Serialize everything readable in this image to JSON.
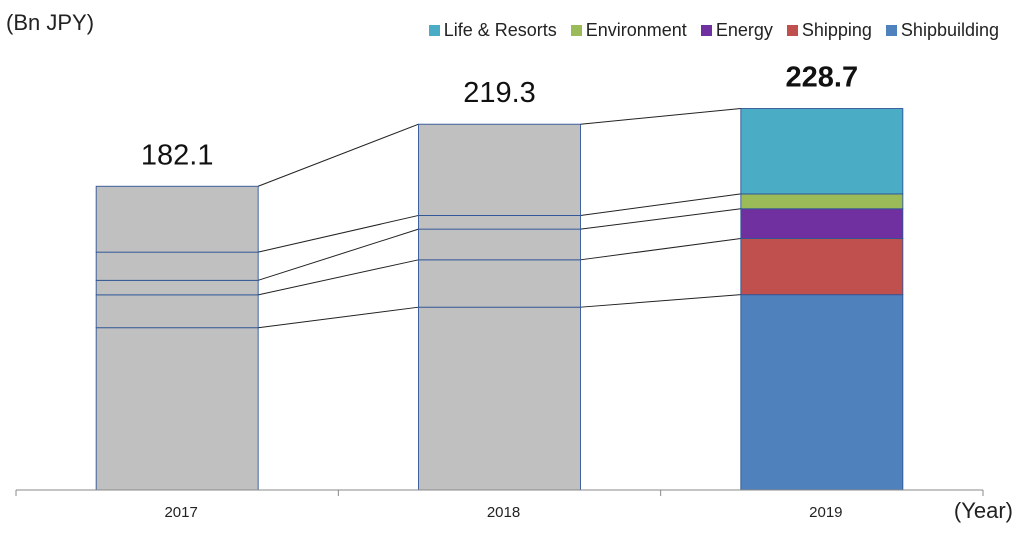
{
  "chart_data": {
    "type": "bar",
    "stacked": true,
    "unit_label": "(Bn JPY)",
    "x_axis_label": "(Year)",
    "categories": [
      "2017",
      "2018",
      "2019"
    ],
    "totals": [
      182.1,
      219.3,
      228.7
    ],
    "total_labels": [
      "182.1",
      "219.3",
      "228.7"
    ],
    "series": [
      {
        "name": "Shipbuilding",
        "values": [
          97.3,
          109.6,
          117.1
        ],
        "color": "#4F81BD"
      },
      {
        "name": "Shipping",
        "values": [
          19.7,
          28.4,
          33.7
        ],
        "color": "#C0504D"
      },
      {
        "name": "Energy",
        "values": [
          8.7,
          18.4,
          17.8
        ],
        "color": "#7030A0"
      },
      {
        "name": "Environment",
        "values": [
          16.9,
          8.2,
          8.9
        ],
        "color": "#9BBB59"
      },
      {
        "name": "Life & Resorts",
        "values": [
          39.5,
          54.7,
          51.2
        ],
        "color": "#4BACC6"
      }
    ],
    "legend_order": [
      "Life & Resorts",
      "Environment",
      "Energy",
      "Shipping",
      "Shipbuilding"
    ],
    "gray_bar_color": "#C0C0C0",
    "ylim": [
      0,
      250
    ],
    "grid": false,
    "legend_position": "top-right"
  }
}
